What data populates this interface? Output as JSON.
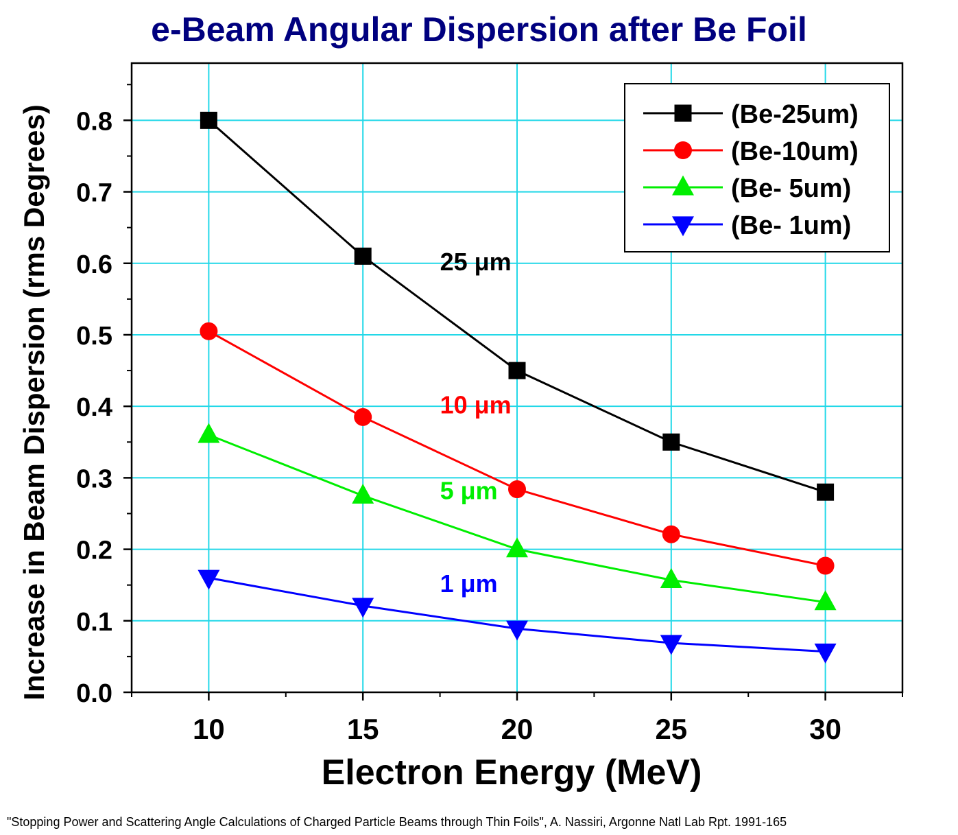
{
  "chart_data": {
    "type": "line",
    "title": "e-Beam Angular Dispersion after Be Foil",
    "xlabel": "Electron Energy (MeV)",
    "ylabel": "Increase in Beam Dispersion (rms Degrees)",
    "x": [
      10,
      15,
      20,
      25,
      30
    ],
    "xlim": [
      7.5,
      32.5
    ],
    "ylim": [
      0.0,
      0.88
    ],
    "xticks": [
      10,
      15,
      20,
      25,
      30
    ],
    "xtick_labels": [
      "10",
      "15",
      "20",
      "25",
      "30"
    ],
    "yticks": [
      0.0,
      0.1,
      0.2,
      0.3,
      0.4,
      0.5,
      0.6,
      0.7,
      0.8
    ],
    "ytick_labels": [
      "0.0",
      "0.1",
      "0.2",
      "0.3",
      "0.4",
      "0.5",
      "0.6",
      "0.7",
      "0.8"
    ],
    "grid": true,
    "grid_color": "#22d8e8",
    "legend_position": "top-right",
    "series": [
      {
        "name": "(Be-25um)",
        "color": "#000000",
        "marker": "square",
        "values": [
          0.8,
          0.61,
          0.45,
          0.35,
          0.28
        ]
      },
      {
        "name": "(Be-10um)",
        "color": "#ff0000",
        "marker": "circle",
        "values": [
          0.505,
          0.385,
          0.284,
          0.221,
          0.177
        ]
      },
      {
        "name": "(Be- 5um)",
        "color": "#00ee00",
        "marker": "triangle-up",
        "values": [
          0.36,
          0.275,
          0.2,
          0.157,
          0.126
        ]
      },
      {
        "name": "(Be- 1um)",
        "color": "#0000ff",
        "marker": "triangle-down",
        "values": [
          0.16,
          0.121,
          0.089,
          0.069,
          0.057
        ]
      }
    ],
    "annotations": [
      {
        "text": "25 μm",
        "color": "#000000",
        "x": 17.5,
        "y": 0.59
      },
      {
        "text": "10 μm",
        "color": "#ff0000",
        "x": 17.5,
        "y": 0.39
      },
      {
        "text": "5 μm",
        "color": "#00ee00",
        "x": 17.5,
        "y": 0.27
      },
      {
        "text": "1 μm",
        "color": "#0000ff",
        "x": 17.5,
        "y": 0.14
      }
    ]
  },
  "footer": {
    "citation": "\"Stopping Power and Scattering Angle Calculations of Charged Particle Beams through Thin Foils\", A. Nassiri, Argonne Natl Lab Rpt. 1991-165"
  }
}
